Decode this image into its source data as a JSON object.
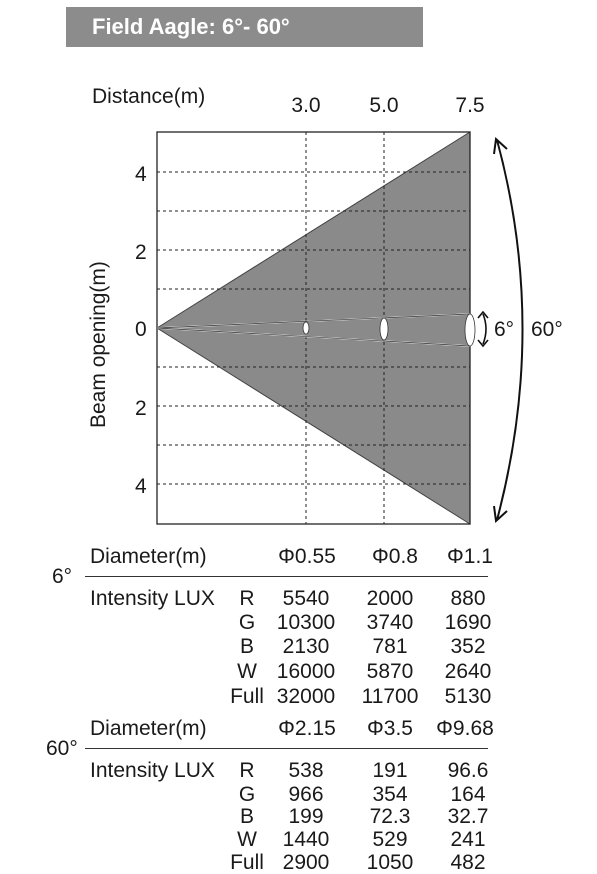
{
  "title": "Field Aagle: 6°- 60°",
  "diagram": {
    "x_axis_title": "Distance(m)",
    "x_ticks": [
      "3.0",
      "5.0",
      "7.5"
    ],
    "y_axis_title": "Beam opening(m)",
    "y_ticks": [
      "4",
      "2",
      "0",
      "2",
      "4"
    ],
    "narrow_angle_label": "6°",
    "wide_angle_label": "60°",
    "beam_fill_color": "#8a8a8a"
  },
  "table_6": {
    "angle": "6°",
    "diameter_label": "Diameter(m)",
    "diameters": [
      "Φ0.55",
      "Φ0.8",
      "Φ1.1"
    ],
    "intensity_label": "Intensity LUX",
    "rows": [
      {
        "channel": "R",
        "values": [
          "5540",
          "2000",
          "880"
        ]
      },
      {
        "channel": "G",
        "values": [
          "10300",
          "3740",
          "1690"
        ]
      },
      {
        "channel": "B",
        "values": [
          "2130",
          "781",
          "352"
        ]
      },
      {
        "channel": "W",
        "values": [
          "16000",
          "5870",
          "2640"
        ]
      },
      {
        "channel": "Full",
        "values": [
          "32000",
          "11700",
          "5130"
        ]
      }
    ]
  },
  "table_60": {
    "angle": "60°",
    "diameter_label": "Diameter(m)",
    "diameters": [
      "Φ2.15",
      "Φ3.5",
      "Φ9.68"
    ],
    "intensity_label": "Intensity LUX",
    "rows": [
      {
        "channel": "R",
        "values": [
          "538",
          "191",
          "96.6"
        ]
      },
      {
        "channel": "G",
        "values": [
          "966",
          "354",
          "164"
        ]
      },
      {
        "channel": "B",
        "values": [
          "199",
          "72.3",
          "32.7"
        ]
      },
      {
        "channel": "W",
        "values": [
          "1440",
          "529",
          "241"
        ]
      },
      {
        "channel": "Full",
        "values": [
          "2900",
          "1050",
          "482"
        ]
      }
    ]
  }
}
